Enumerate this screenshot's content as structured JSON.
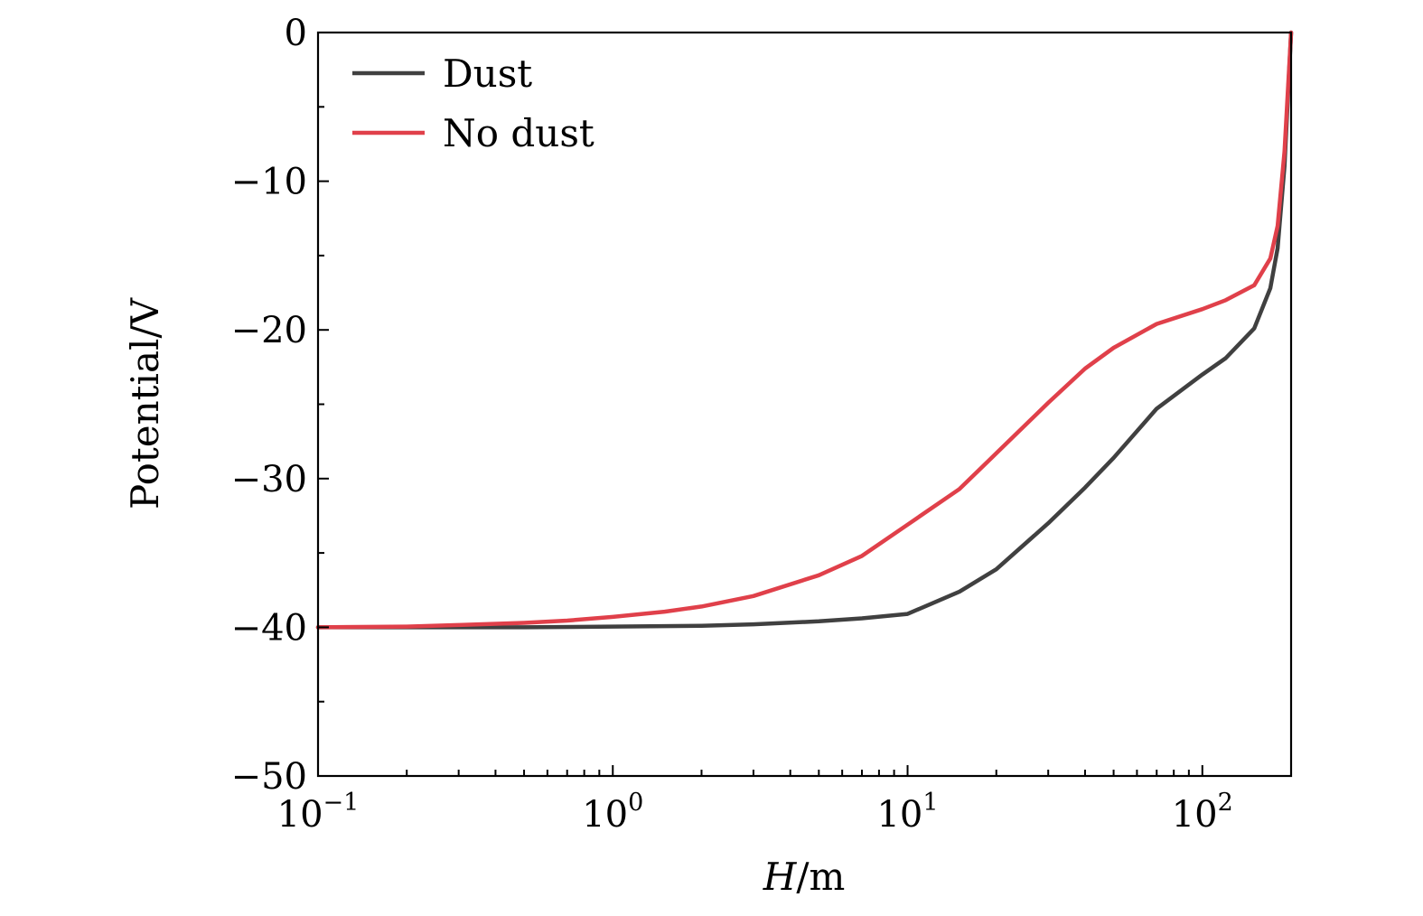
{
  "chart_data": {
    "type": "line",
    "xlabel_var": "H",
    "xlabel_unit": "/m",
    "ylabel": "Potential/V",
    "x_scale": "log",
    "xlim": [
      0.1,
      200
    ],
    "ylim": [
      -50,
      0
    ],
    "x_ticks": [
      {
        "base": "10",
        "exp": "−1",
        "value": 0.1
      },
      {
        "base": "10",
        "exp": "0",
        "value": 1
      },
      {
        "base": "10",
        "exp": "1",
        "value": 10
      },
      {
        "base": "10",
        "exp": "2",
        "value": 100
      }
    ],
    "y_ticks": [
      {
        "label": "0",
        "value": 0
      },
      {
        "label": "−10",
        "value": -10
      },
      {
        "label": "−20",
        "value": -20
      },
      {
        "label": "−30",
        "value": -30
      },
      {
        "label": "−40",
        "value": -40
      },
      {
        "label": "−50",
        "value": -50
      }
    ],
    "y_minor_ticks": [
      -5,
      -15,
      -25,
      -35,
      -45
    ],
    "grid": false,
    "legend_position": "top-left",
    "series": [
      {
        "name": "Dust",
        "color": "#404040",
        "x": [
          0.1,
          0.2,
          0.5,
          1,
          2,
          3,
          5,
          7,
          10,
          15,
          20,
          30,
          40,
          50,
          70,
          100,
          120,
          150,
          170,
          180,
          190,
          200
        ],
        "y": [
          -40,
          -40,
          -40,
          -39.95,
          -39.9,
          -39.8,
          -39.6,
          -39.4,
          -39.1,
          -37.6,
          -36.1,
          -33,
          -30.6,
          -28.6,
          -25.3,
          -23,
          -21.9,
          -19.9,
          -17.2,
          -14.5,
          -9,
          0
        ]
      },
      {
        "name": "No dust",
        "color": "#e0404a",
        "x": [
          0.1,
          0.2,
          0.3,
          0.5,
          0.7,
          1,
          1.5,
          2,
          3,
          5,
          7,
          10,
          15,
          20,
          30,
          40,
          50,
          70,
          100,
          120,
          150,
          170,
          180,
          190,
          200
        ],
        "y": [
          -40,
          -39.95,
          -39.85,
          -39.7,
          -39.55,
          -39.3,
          -38.95,
          -38.6,
          -37.9,
          -36.5,
          -35.2,
          -33.1,
          -30.7,
          -28.3,
          -24.9,
          -22.6,
          -21.2,
          -19.6,
          -18.6,
          -18,
          -17,
          -15.2,
          -13,
          -8,
          0
        ]
      }
    ]
  }
}
